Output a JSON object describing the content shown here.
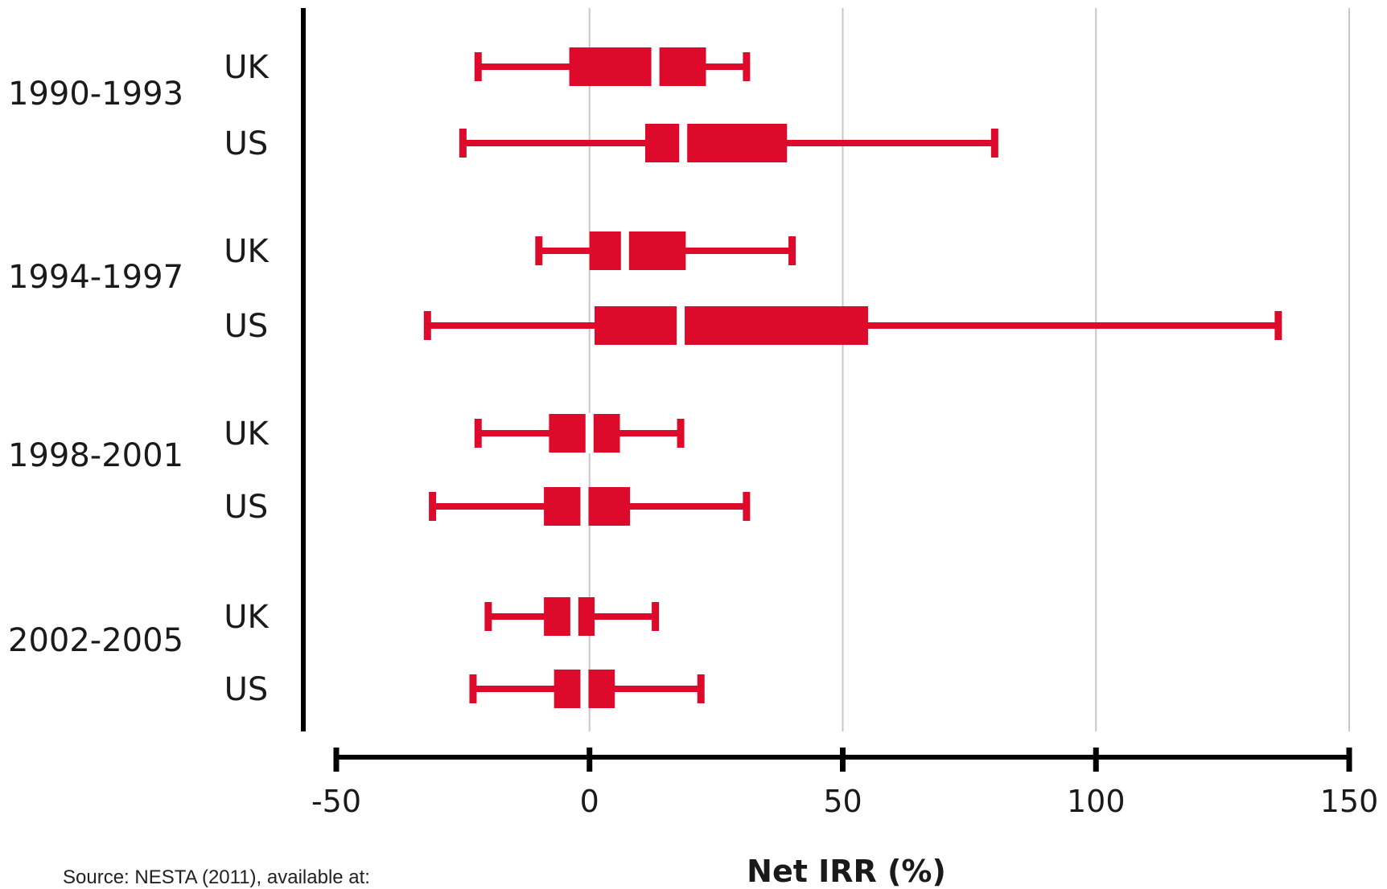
{
  "chart_data": {
    "type": "boxplot",
    "orientation": "horizontal",
    "xlabel": "Net IRR (%)",
    "xlim": [
      -50,
      150
    ],
    "xticks": [
      -50,
      0,
      50,
      100,
      150
    ],
    "grid": "vertical",
    "color": "#de0a2c",
    "groups": [
      {
        "period": "1990-1993",
        "series": [
          {
            "name": "UK",
            "whisker_low": -22,
            "q1": -4,
            "median": 13,
            "q3": 23,
            "whisker_high": 31
          },
          {
            "name": "US",
            "whisker_low": -25,
            "q1": 11,
            "median": 18.5,
            "q3": 39,
            "whisker_high": 80
          }
        ]
      },
      {
        "period": "1994-1997",
        "series": [
          {
            "name": "UK",
            "whisker_low": -10,
            "q1": 0,
            "median": 7,
            "q3": 19,
            "whisker_high": 40
          }
        ]
      },
      {
        "period": "1994-1997",
        "series": [
          {
            "name": "US",
            "whisker_low": -32,
            "q1": 1,
            "median": 18,
            "q3": 55,
            "whisker_high": 136
          }
        ]
      },
      {
        "period": "1998-2001",
        "series": [
          {
            "name": "UK",
            "whisker_low": -22,
            "q1": -8,
            "median": 0,
            "q3": 6,
            "whisker_high": 18
          },
          {
            "name": "US",
            "whisker_low": -31,
            "q1": -9,
            "median": -1,
            "q3": 8,
            "whisker_high": 31
          }
        ]
      },
      {
        "period": "2002-2005",
        "series": [
          {
            "name": "UK",
            "whisker_low": -20,
            "q1": -9,
            "median": -3,
            "q3": 1,
            "whisker_high": 13
          },
          {
            "name": "US",
            "whisker_low": -23,
            "q1": -7,
            "median": -1,
            "q3": 5,
            "whisker_high": 22
          }
        ]
      }
    ]
  },
  "source_text": "Source: NESTA (2011), available at:"
}
